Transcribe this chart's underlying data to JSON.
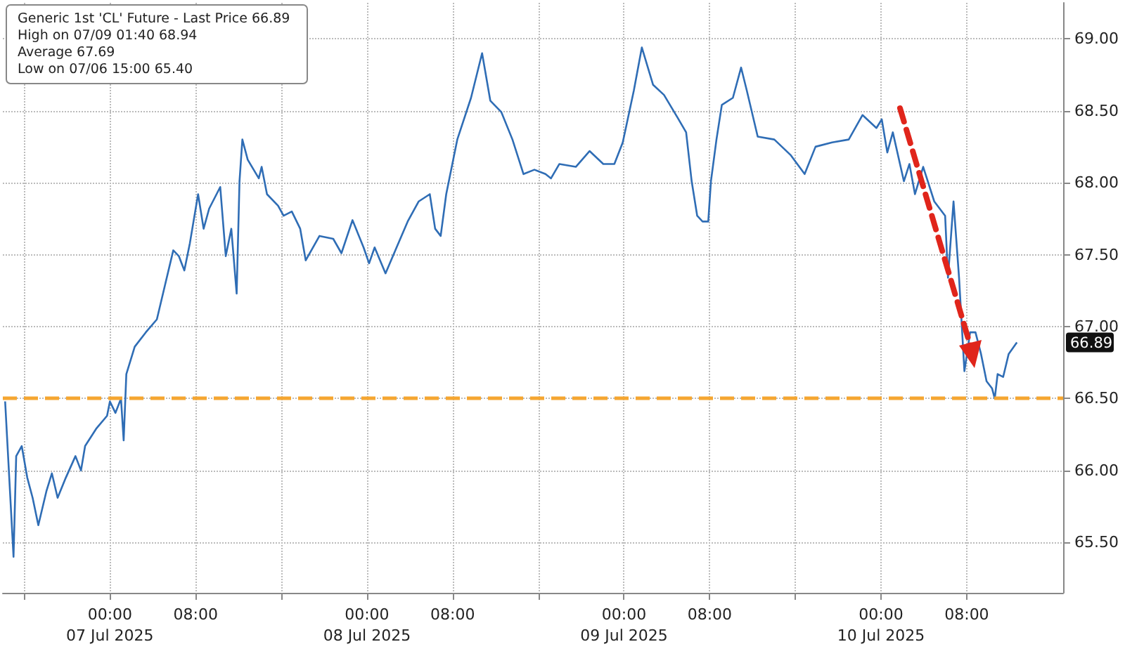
{
  "chart_data": {
    "type": "line",
    "annotations": [
      "Generic 1st 'CL' Future - Last Price 66.89",
      "High on 07/09 01:40 68.94",
      "Average 67.69",
      "Low on 07/06 15:00 65.40",
      "66.89"
    ],
    "series": [
      {
        "color": "#2f6db5",
        "x": [
          "2025-07-06T14:13",
          "2025-07-06T15:00",
          "2025-07-06T15:15",
          "2025-07-06T15:46",
          "2025-07-06T16:17",
          "2025-07-06T16:47",
          "2025-07-06T17:19",
          "2025-07-06T18:05",
          "2025-07-06T18:35",
          "2025-07-06T19:07",
          "2025-07-06T19:53",
          "2025-07-06T20:47",
          "2025-07-06T21:18",
          "2025-07-06T21:41",
          "2025-07-06T22:43",
          "2025-07-06T23:44",
          "2025-07-07T00:00",
          "2025-07-07T00:31",
          "2025-07-07T01:02",
          "2025-07-07T01:17",
          "2025-07-07T01:32",
          "2025-07-07T02:19",
          "2025-07-07T03:21",
          "2025-07-07T04:23",
          "2025-07-07T05:09",
          "2025-07-07T05:55",
          "2025-07-07T06:26",
          "2025-07-07T06:57",
          "2025-07-07T07:28",
          "2025-07-07T08:14",
          "2025-07-07T08:45",
          "2025-07-07T09:16",
          "2025-07-07T10:18",
          "2025-07-07T10:49",
          "2025-07-07T11:20",
          "2025-07-07T11:50",
          "2025-07-07T12:06",
          "2025-07-07T12:22",
          "2025-07-07T12:52",
          "2025-07-07T13:54",
          "2025-07-07T14:10",
          "2025-07-07T14:40",
          "2025-07-07T15:42",
          "2025-07-07T16:13",
          "2025-07-07T16:59",
          "2025-07-07T17:46",
          "2025-07-07T18:17",
          "2025-07-07T19:34",
          "2025-07-07T20:51",
          "2025-07-07T21:37",
          "2025-07-07T22:39",
          "2025-07-07T23:41",
          "2025-07-08T00:12",
          "2025-07-08T00:43",
          "2025-07-08T01:44",
          "2025-07-08T02:46",
          "2025-07-08T03:48",
          "2025-07-08T04:50",
          "2025-07-08T05:52",
          "2025-07-08T06:22",
          "2025-07-08T06:53",
          "2025-07-08T07:24",
          "2025-07-08T08:26",
          "2025-07-08T09:43",
          "2025-07-08T10:45",
          "2025-07-08T11:31",
          "2025-07-08T12:33",
          "2025-07-08T13:35",
          "2025-07-08T14:37",
          "2025-07-08T15:38",
          "2025-07-08T16:40",
          "2025-07-08T17:11",
          "2025-07-08T17:58",
          "2025-07-08T19:30",
          "2025-07-08T20:47",
          "2025-07-08T22:04",
          "2025-07-08T23:06",
          "2025-07-08T23:53",
          "2025-07-09T00:55",
          "2025-07-09T01:40",
          "2025-07-09T02:43",
          "2025-07-09T03:44",
          "2025-07-09T05:01",
          "2025-07-09T05:48",
          "2025-07-09T06:19",
          "2025-07-09T06:50",
          "2025-07-09T07:20",
          "2025-07-09T07:52",
          "2025-07-09T08:07",
          "2025-07-09T08:38",
          "2025-07-09T09:08",
          "2025-07-09T10:10",
          "2025-07-09T10:56",
          "2025-07-09T11:28",
          "2025-07-09T12:29",
          "2025-07-09T14:02",
          "2025-07-09T15:35",
          "2025-07-09T16:52",
          "2025-07-09T17:53",
          "2025-07-09T19:26",
          "2025-07-09T20:59",
          "2025-07-09T22:16",
          "2025-07-09T23:34",
          "2025-07-10T00:04",
          "2025-07-10T00:35",
          "2025-07-10T01:06",
          "2025-07-10T02:08",
          "2025-07-10T02:39",
          "2025-07-10T03:10",
          "2025-07-10T03:56",
          "2025-07-10T04:58",
          "2025-07-10T05:59",
          "2025-07-10T06:15",
          "2025-07-10T06:46",
          "2025-07-10T07:17",
          "2025-07-10T07:47",
          "2025-07-10T08:19",
          "2025-07-10T08:49",
          "2025-07-10T09:20",
          "2025-07-10T09:51",
          "2025-07-10T10:22",
          "2025-07-10T10:37",
          "2025-07-10T10:53",
          "2025-07-10T11:24",
          "2025-07-10T11:55",
          "2025-07-10T12:41"
        ],
        "values": [
          66.48,
          65.4,
          66.1,
          66.17,
          65.95,
          65.81,
          65.62,
          65.86,
          65.98,
          65.81,
          65.95,
          66.1,
          66.0,
          66.17,
          66.29,
          66.38,
          66.48,
          66.4,
          66.5,
          66.21,
          66.67,
          66.86,
          66.96,
          67.05,
          67.29,
          67.53,
          67.49,
          67.39,
          67.58,
          67.92,
          67.68,
          67.82,
          67.97,
          67.49,
          67.68,
          67.23,
          68.01,
          68.3,
          68.16,
          68.03,
          68.11,
          67.92,
          67.84,
          67.77,
          67.8,
          67.68,
          67.46,
          67.63,
          67.61,
          67.51,
          67.74,
          67.55,
          67.44,
          67.55,
          67.37,
          67.55,
          67.73,
          67.87,
          67.92,
          67.68,
          67.63,
          67.92,
          68.3,
          68.59,
          68.9,
          68.57,
          68.49,
          68.3,
          68.06,
          68.09,
          68.06,
          68.03,
          68.13,
          68.11,
          68.22,
          68.13,
          68.13,
          68.28,
          68.64,
          68.94,
          68.68,
          68.61,
          68.45,
          68.35,
          68.01,
          67.77,
          67.73,
          67.73,
          68.01,
          68.3,
          68.54,
          68.59,
          68.8,
          68.64,
          68.32,
          68.3,
          68.19,
          68.06,
          68.25,
          68.28,
          68.3,
          68.47,
          68.38,
          68.44,
          68.21,
          68.35,
          68.01,
          68.13,
          67.92,
          68.11,
          67.87,
          67.77,
          67.34,
          67.87,
          67.34,
          66.69,
          66.96,
          66.96,
          66.81,
          66.62,
          66.57,
          66.5,
          66.67,
          66.65,
          66.81,
          66.89
        ]
      }
    ],
    "xlim": [
      "2025-07-06T14:00",
      "2025-07-10T17:00"
    ],
    "xticks": [
      {
        "value": "2025-07-06T16:00",
        "label": null
      },
      {
        "value": "2025-07-07T00:00",
        "label": "00:00\n07 Jul 2025"
      },
      {
        "value": "2025-07-07T08:00",
        "label": "08:00"
      },
      {
        "value": "2025-07-07T16:00",
        "label": null
      },
      {
        "value": "2025-07-08T00:00",
        "label": "00:00\n08 Jul 2025"
      },
      {
        "value": "2025-07-08T08:00",
        "label": "08:00"
      },
      {
        "value": "2025-07-08T16:00",
        "label": null
      },
      {
        "value": "2025-07-09T00:00",
        "label": "00:00\n09 Jul 2025"
      },
      {
        "value": "2025-07-09T08:00",
        "label": "08:00"
      },
      {
        "value": "2025-07-09T16:00",
        "label": null
      },
      {
        "value": "2025-07-10T00:00",
        "label": "00:00\n10 Jul 2025"
      },
      {
        "value": "2025-07-10T08:00",
        "label": "08:00"
      }
    ],
    "ylim": [
      65.15,
      69.25
    ],
    "yticks": [
      {
        "value": 65.5,
        "label": "65.50"
      },
      {
        "value": 66,
        "label": "66.00"
      },
      {
        "value": 66.5,
        "label": "66.50"
      },
      {
        "value": 67,
        "label": "67.00"
      },
      {
        "value": 67.5,
        "label": "67.50"
      },
      {
        "value": 68,
        "label": "68.00"
      },
      {
        "value": 68.5,
        "label": "68.50"
      },
      {
        "value": 69,
        "label": "69.00"
      }
    ],
    "ref_lines": [
      {
        "axis": "y",
        "value": 66.5,
        "color": "#f5a631",
        "line_style": "dashed"
      }
    ],
    "grid": true,
    "marker": "none",
    "line_style": "solid"
  }
}
